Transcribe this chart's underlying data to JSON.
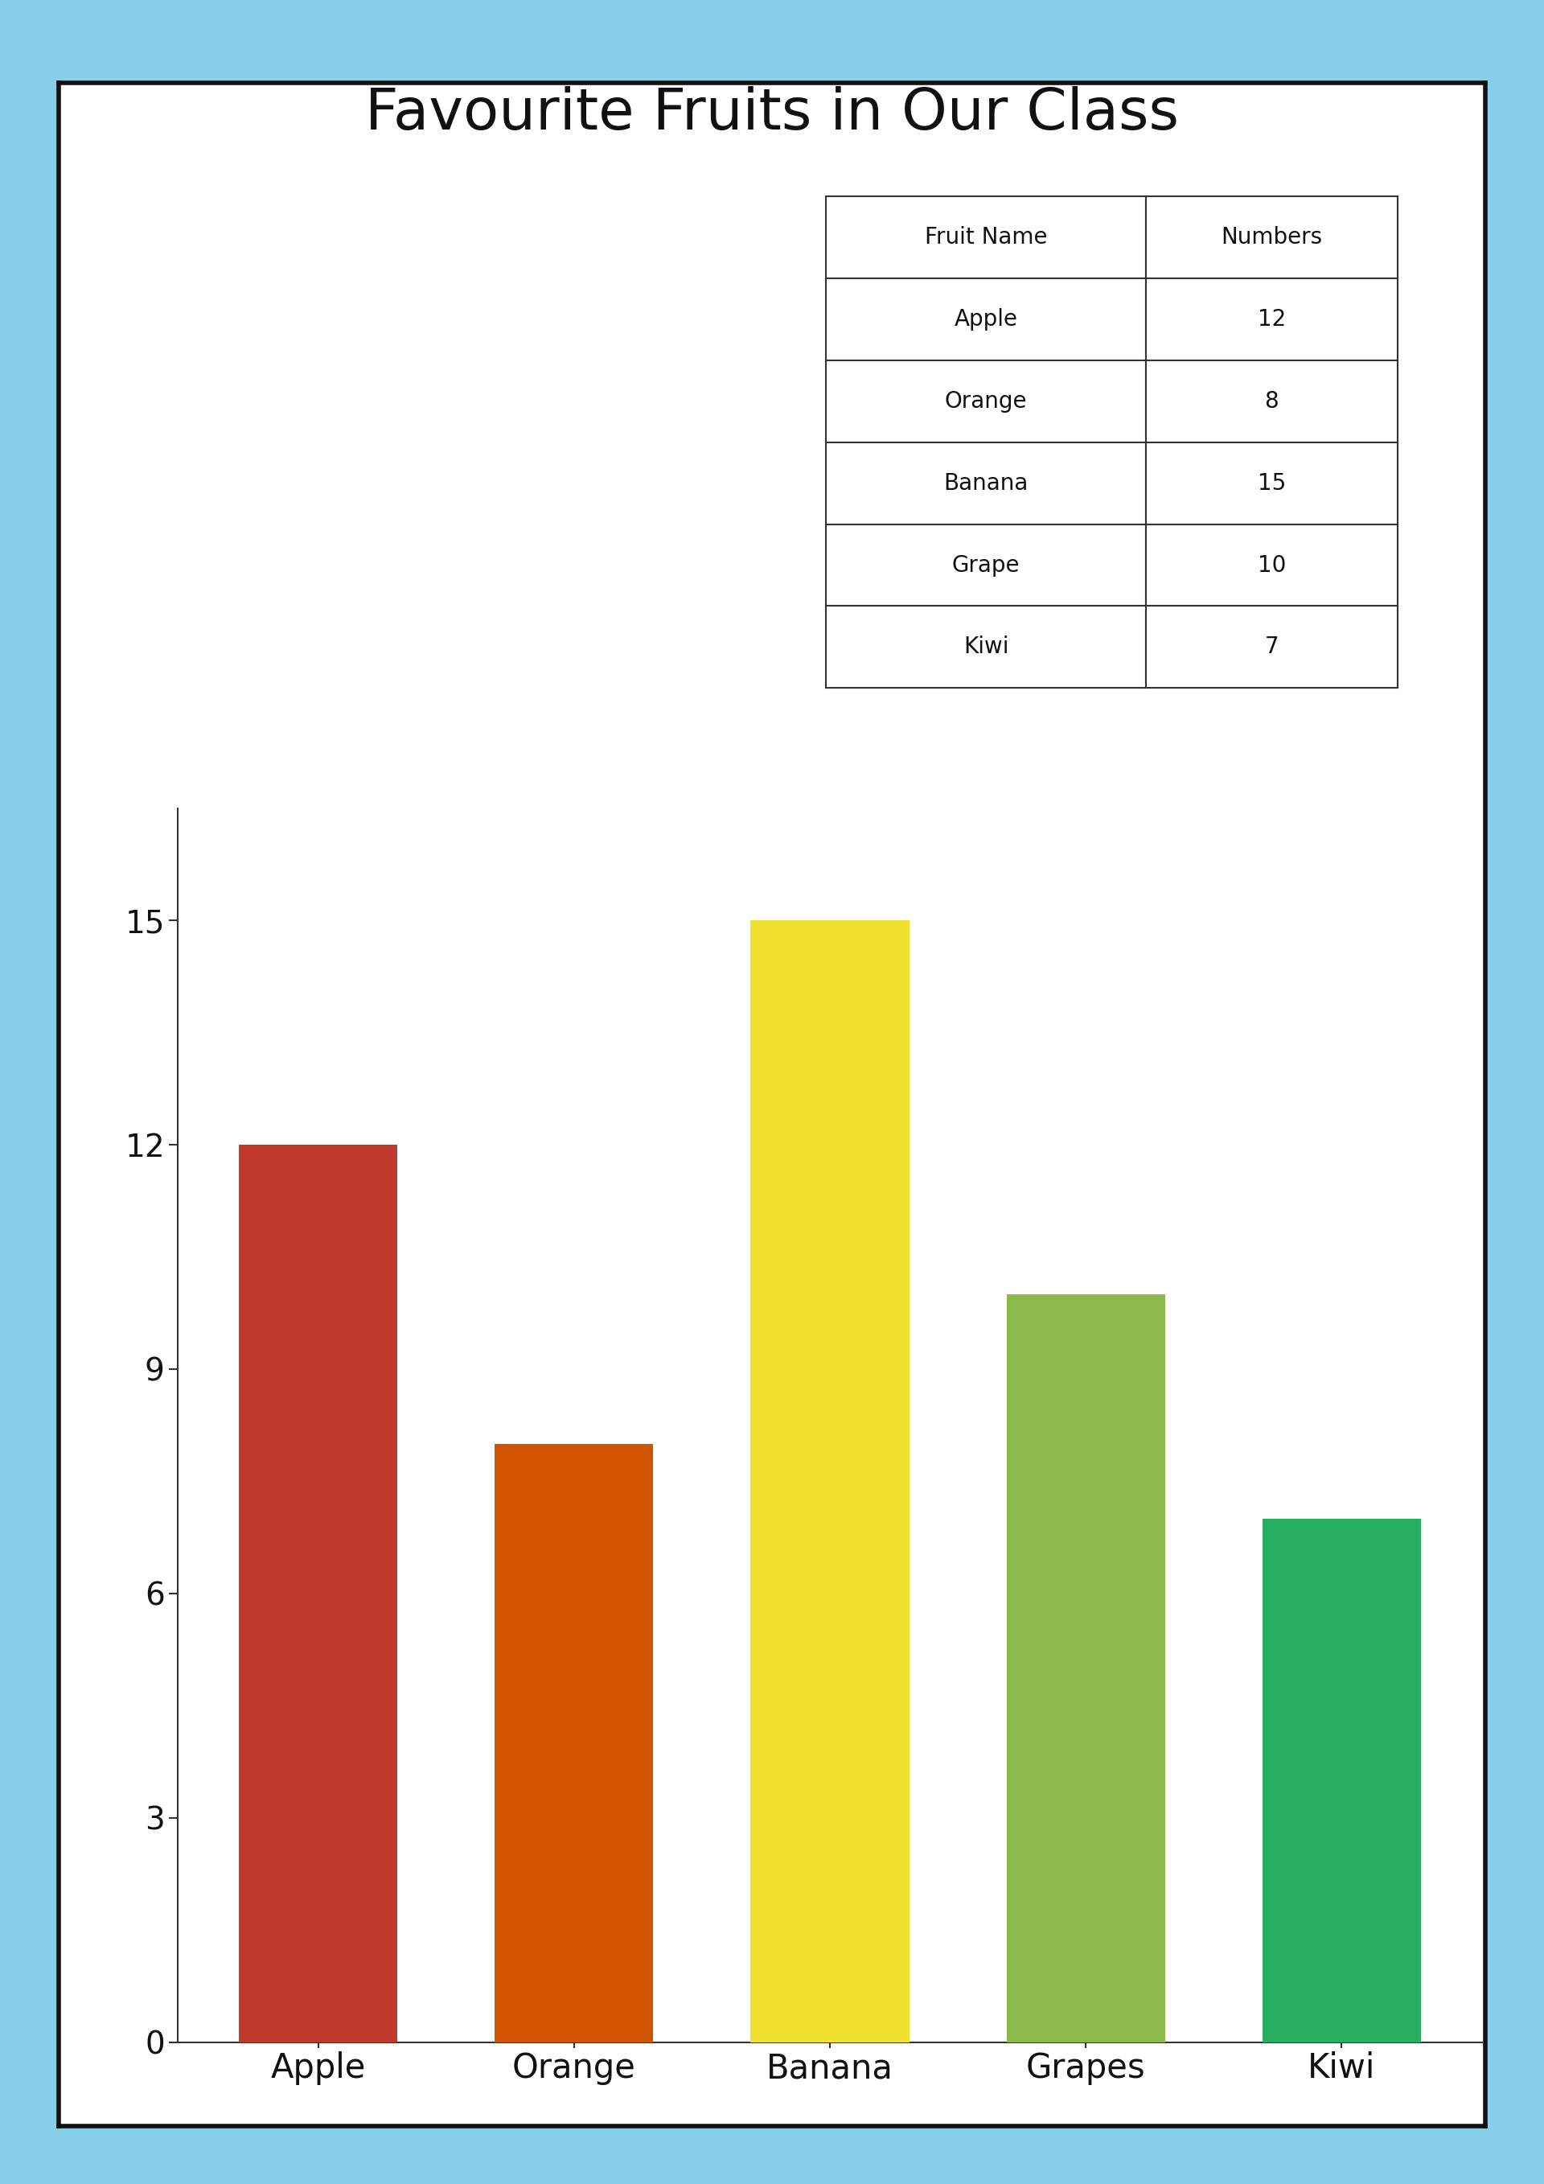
{
  "title": "Favourite Fruits in Our Class",
  "categories": [
    "Apple",
    "Orange",
    "Banana",
    "Grapes",
    "Kiwi"
  ],
  "values": [
    12,
    8,
    15,
    10,
    7
  ],
  "bar_colors": [
    "#C0392B",
    "#D35400",
    "#F0E030",
    "#8DB84A",
    "#27AE60"
  ],
  "yticks": [
    0,
    3,
    6,
    9,
    12,
    15
  ],
  "ylim": [
    0,
    16.5
  ],
  "background_color": "#ffffff",
  "border_color": "#87CEEB",
  "inner_border_color": "#111111",
  "title_fontsize": 52,
  "tick_fontsize": 28,
  "xlabel_fontsize": 30,
  "table_header": [
    "Fruit Name",
    "Numbers"
  ],
  "table_rows": [
    [
      "Apple",
      "12"
    ],
    [
      "Orange",
      "8"
    ],
    [
      "Banana",
      "15"
    ],
    [
      "Grape",
      "10"
    ],
    [
      "Kiwi",
      "7"
    ]
  ],
  "cell_fontsize": 20,
  "border_thickness": 18,
  "inner_border_thickness": 4
}
